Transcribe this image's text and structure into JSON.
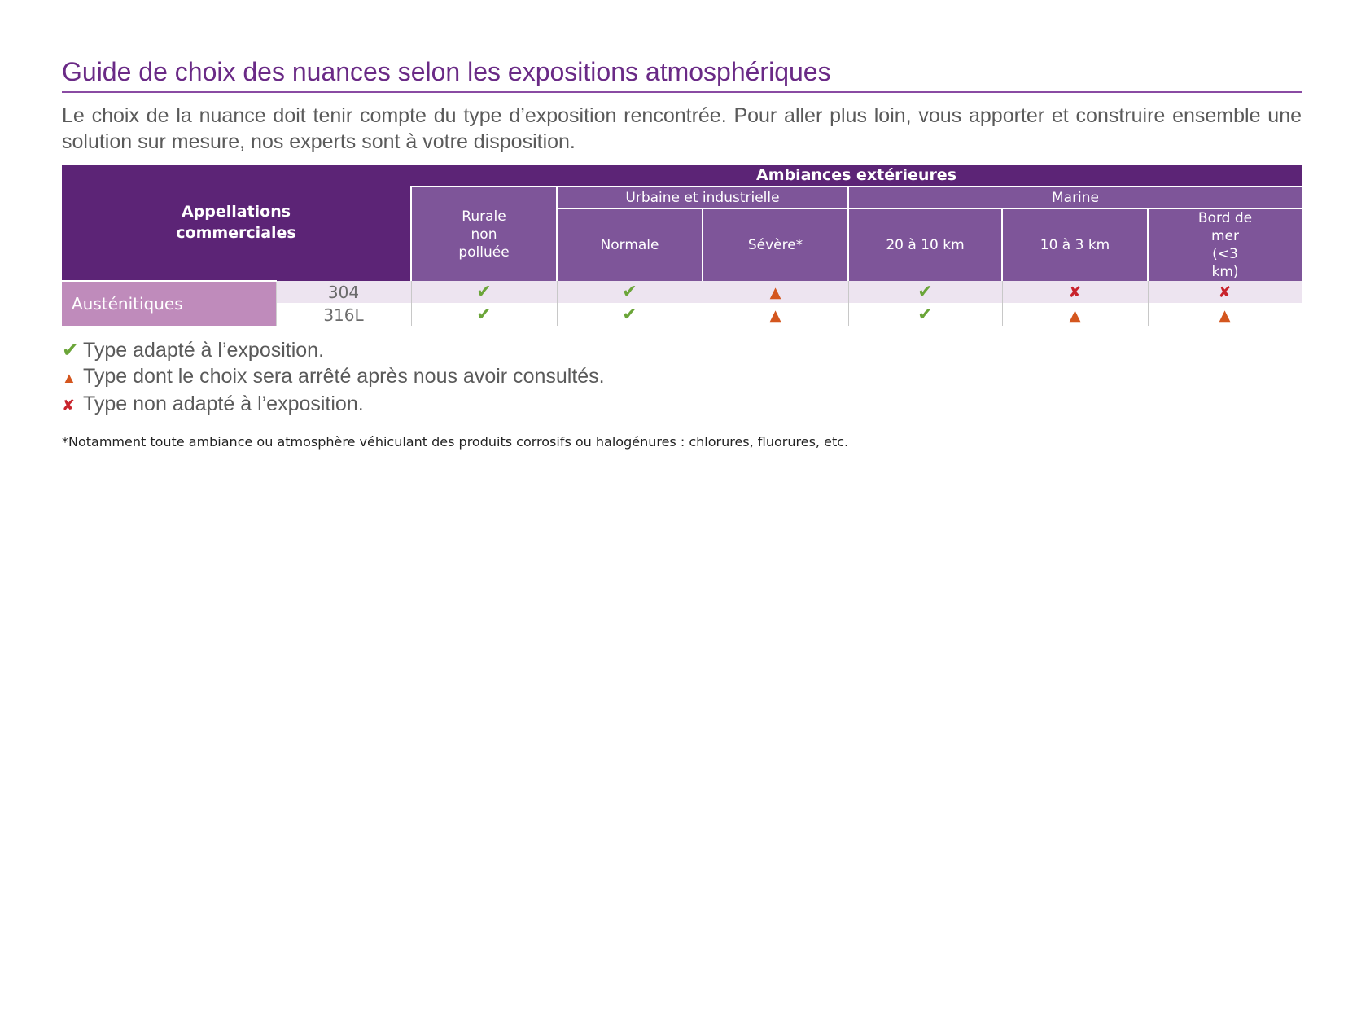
{
  "title": "Guide de choix des nuances selon les expositions atmosphériques",
  "intro": "Le choix de la nuance doit tenir compte du type d’exposition rencontrée. Pour aller plus loin, vous apporter et construire ensemble une solution sur mesure, nos experts sont à votre disposition.",
  "table": {
    "appellations_label": "Appellations commerciales",
    "ambiances_label": "Ambiances extérieures",
    "groups": {
      "rurale": "Rurale non polluée",
      "urbaine": "Urbaine et industrielle",
      "marine": "Marine"
    },
    "subcolumns": {
      "normale": "Normale",
      "severe": "Sévère*",
      "m1": "20 à 10 km",
      "m2": "10 à 3 km",
      "m3": "Bord de mer (<3 km)"
    },
    "family": "Austénitiques",
    "rows": [
      {
        "grade": "304",
        "values": [
          "ok",
          "ok",
          "warn",
          "ok",
          "no",
          "no"
        ]
      },
      {
        "grade": "316L",
        "values": [
          "ok",
          "ok",
          "warn",
          "ok",
          "warn",
          "warn"
        ]
      }
    ]
  },
  "symbols": {
    "ok": "✔",
    "warn": "▲",
    "no": "✘"
  },
  "symbol_colors": {
    "ok": "#6ba539",
    "warn": "#d4561e",
    "no": "#c8232c"
  },
  "legend": {
    "ok": "Type adapté à l’exposition.",
    "warn": "Type dont le choix sera arrêté après nous avoir consultés.",
    "no": "Type non adapté à l’exposition."
  },
  "footnote": "*Notamment toute ambiance ou atmosphère véhiculant des produits corrosifs ou halogénures : chlorures, fluorures, etc.",
  "colors": {
    "title": "#6a2a86",
    "header_dark": "#5c2476",
    "header_mid": "#7e5599",
    "family_bg": "#bf8bbb"
  }
}
